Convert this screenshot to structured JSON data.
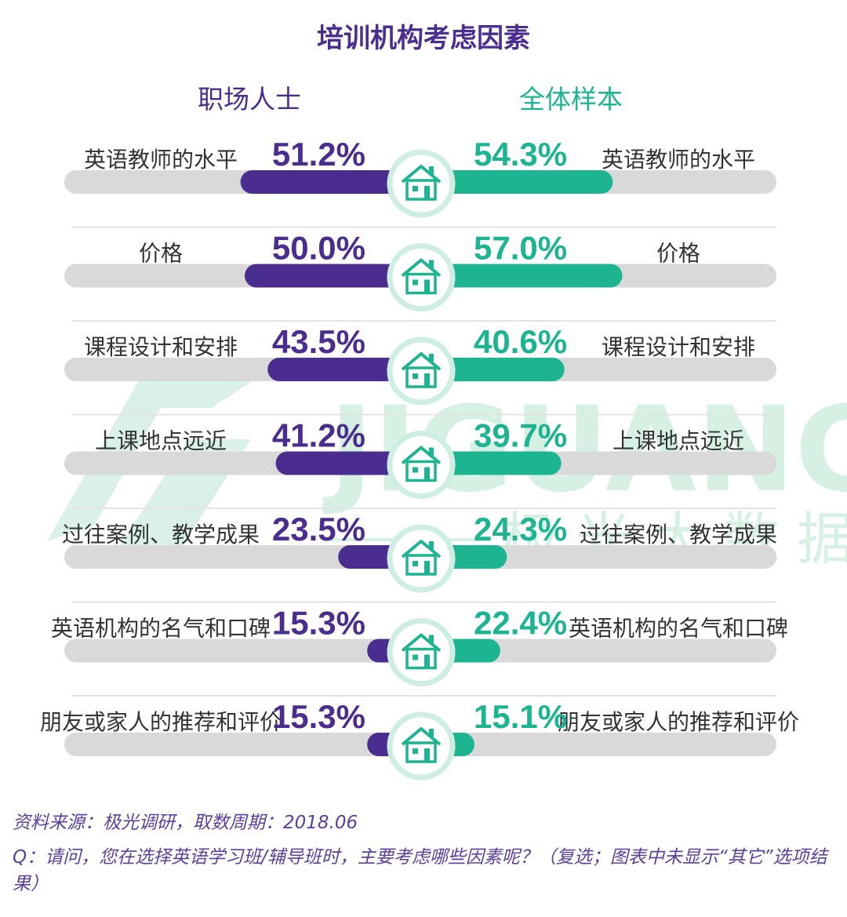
{
  "chart_data": {
    "type": "bar",
    "title": "培训机构考虑因素",
    "categories": [
      "英语教师的水平",
      "价格",
      "课程设计和安排",
      "上课地点远近",
      "过往案例、教学成果",
      "英语机构的名气和口碑",
      "朋友或家人的推荐和评价"
    ],
    "series": [
      {
        "name": "职场人士",
        "values": [
          51.2,
          50.0,
          43.5,
          41.2,
          23.5,
          15.3,
          15.3
        ],
        "labels": [
          "51.2%",
          "50.0%",
          "43.5%",
          "41.2%",
          "23.5%",
          "15.3%",
          "15.3%"
        ]
      },
      {
        "name": "全体样本",
        "values": [
          54.3,
          57.0,
          40.6,
          39.7,
          24.3,
          22.4,
          15.1
        ],
        "labels": [
          "54.3%",
          "57.0%",
          "40.6%",
          "39.7%",
          "24.3%",
          "22.4%",
          "15.1%"
        ]
      }
    ],
    "xlim": [
      0,
      100
    ],
    "unit": "%",
    "legend": "top",
    "grid": false
  },
  "colors": {
    "left_series": "#4a2d8f",
    "right_series": "#1db492",
    "track": "#d9d9d9",
    "divider": "#e3e3e3",
    "footer_text": "#5b3f9e",
    "watermark": "#cfeee0"
  },
  "icon": "house-icon",
  "watermark": {
    "logo": "JIGUANG",
    "tagline": "极光大数据"
  },
  "footer": {
    "source": "资料来源：极光调研，取数周期：2018.06",
    "question": "Q：请问，您在选择英语学习班/辅导班时，主要考虑哪些因素呢？（复选；图表中未显示“其它”选项结果）"
  }
}
